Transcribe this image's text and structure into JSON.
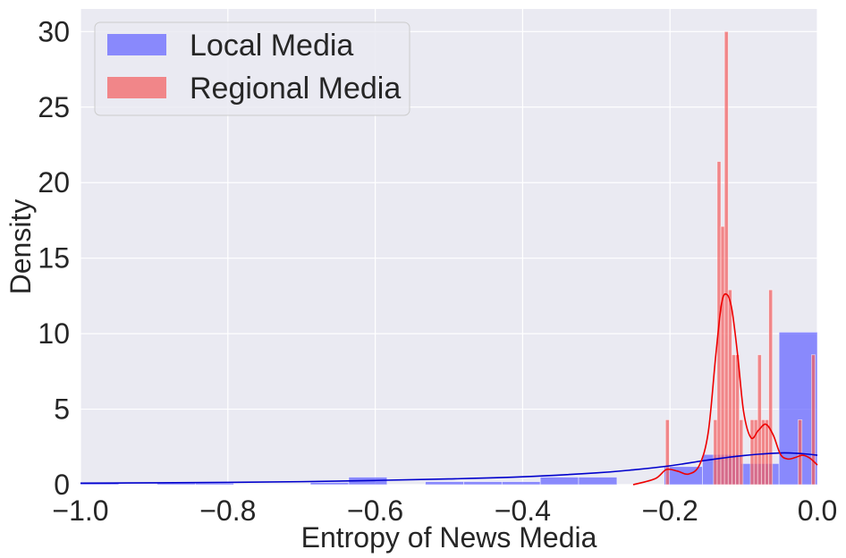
{
  "chart_data": {
    "type": "histogram",
    "title": "",
    "xlabel": "Entropy of News Media",
    "ylabel": "Density",
    "xlim": [
      -1.0,
      0.0
    ],
    "ylim": [
      0,
      31.5
    ],
    "grid": true,
    "legend_placement": "top-left",
    "x_ticks": [
      {
        "value": -1.0,
        "label": "−1.0"
      },
      {
        "value": -0.8,
        "label": "−0.8"
      },
      {
        "value": -0.6,
        "label": "−0.6"
      },
      {
        "value": -0.4,
        "label": "−0.4"
      },
      {
        "value": -0.2,
        "label": "−0.2"
      },
      {
        "value": 0.0,
        "label": "0.0"
      }
    ],
    "y_ticks": [
      {
        "value": 0,
        "label": "0"
      },
      {
        "value": 5,
        "label": "5"
      },
      {
        "value": 10,
        "label": "10"
      },
      {
        "value": 15,
        "label": "15"
      },
      {
        "value": 20,
        "label": "20"
      },
      {
        "value": 25,
        "label": "25"
      },
      {
        "value": 30,
        "label": "30"
      }
    ],
    "series": [
      {
        "name": "Local Media",
        "color": "#6464ff",
        "kde_color": "#0000cc",
        "bins": [
          {
            "x0": -1.0,
            "x1": -0.948,
            "y": 0.1
          },
          {
            "x0": -0.896,
            "x1": -0.844,
            "y": 0.1
          },
          {
            "x0": -0.844,
            "x1": -0.792,
            "y": 0.1
          },
          {
            "x0": -0.688,
            "x1": -0.636,
            "y": 0.15
          },
          {
            "x0": -0.636,
            "x1": -0.584,
            "y": 0.5
          },
          {
            "x0": -0.532,
            "x1": -0.48,
            "y": 0.2
          },
          {
            "x0": -0.48,
            "x1": -0.428,
            "y": 0.2
          },
          {
            "x0": -0.428,
            "x1": -0.376,
            "y": 0.2
          },
          {
            "x0": -0.376,
            "x1": -0.324,
            "y": 0.5
          },
          {
            "x0": -0.324,
            "x1": -0.272,
            "y": 0.5
          },
          {
            "x0": -0.208,
            "x1": -0.156,
            "y": 1.2
          },
          {
            "x0": -0.156,
            "x1": -0.104,
            "y": 2.0
          },
          {
            "x0": -0.104,
            "x1": -0.052,
            "y": 1.4
          },
          {
            "x0": -0.052,
            "x1": 0.0,
            "y": 10.1
          }
        ],
        "kde": [
          [
            -1.0,
            0.1
          ],
          [
            -0.9,
            0.12
          ],
          [
            -0.8,
            0.15
          ],
          [
            -0.7,
            0.2
          ],
          [
            -0.6,
            0.28
          ],
          [
            -0.5,
            0.38
          ],
          [
            -0.4,
            0.52
          ],
          [
            -0.3,
            0.78
          ],
          [
            -0.25,
            0.98
          ],
          [
            -0.2,
            1.25
          ],
          [
            -0.15,
            1.62
          ],
          [
            -0.1,
            1.93
          ],
          [
            -0.05,
            2.1
          ],
          [
            -0.02,
            2.05
          ],
          [
            0.0,
            1.95
          ]
        ]
      },
      {
        "name": "Regional Media",
        "color": "#f46060",
        "kde_color": "#ee0000",
        "bins": [
          {
            "x0": -0.206,
            "x1": -0.201,
            "y": 4.3
          },
          {
            "x0": -0.141,
            "x1": -0.136,
            "y": 4.3
          },
          {
            "x0": -0.136,
            "x1": -0.131,
            "y": 21.4
          },
          {
            "x0": -0.131,
            "x1": -0.126,
            "y": 17.1
          },
          {
            "x0": -0.126,
            "x1": -0.121,
            "y": 30.0
          },
          {
            "x0": -0.121,
            "x1": -0.116,
            "y": 12.9
          },
          {
            "x0": -0.116,
            "x1": -0.111,
            "y": 8.6
          },
          {
            "x0": -0.111,
            "x1": -0.106,
            "y": 8.6
          },
          {
            "x0": -0.106,
            "x1": -0.101,
            "y": 4.3
          },
          {
            "x0": -0.091,
            "x1": -0.086,
            "y": 4.3
          },
          {
            "x0": -0.086,
            "x1": -0.081,
            "y": 4.3
          },
          {
            "x0": -0.081,
            "x1": -0.076,
            "y": 8.6
          },
          {
            "x0": -0.076,
            "x1": -0.071,
            "y": 4.3
          },
          {
            "x0": -0.071,
            "x1": -0.066,
            "y": 4.3
          },
          {
            "x0": -0.066,
            "x1": -0.061,
            "y": 12.9
          },
          {
            "x0": -0.026,
            "x1": -0.021,
            "y": 4.3
          },
          {
            "x0": -0.008,
            "x1": -0.003,
            "y": 8.6
          }
        ],
        "kde": [
          [
            -0.25,
            0.0
          ],
          [
            -0.22,
            0.4
          ],
          [
            -0.205,
            1.0
          ],
          [
            -0.19,
            0.9
          ],
          [
            -0.175,
            0.7
          ],
          [
            -0.16,
            1.3
          ],
          [
            -0.148,
            3.5
          ],
          [
            -0.138,
            8.5
          ],
          [
            -0.13,
            12.0
          ],
          [
            -0.123,
            12.6
          ],
          [
            -0.116,
            11.6
          ],
          [
            -0.108,
            8.5
          ],
          [
            -0.1,
            4.8
          ],
          [
            -0.09,
            3.1
          ],
          [
            -0.08,
            3.6
          ],
          [
            -0.07,
            4.0
          ],
          [
            -0.06,
            3.3
          ],
          [
            -0.05,
            2.0
          ],
          [
            -0.04,
            1.7
          ],
          [
            -0.03,
            1.8
          ],
          [
            -0.02,
            1.95
          ],
          [
            -0.01,
            1.75
          ],
          [
            0.0,
            1.3
          ]
        ]
      }
    ]
  }
}
